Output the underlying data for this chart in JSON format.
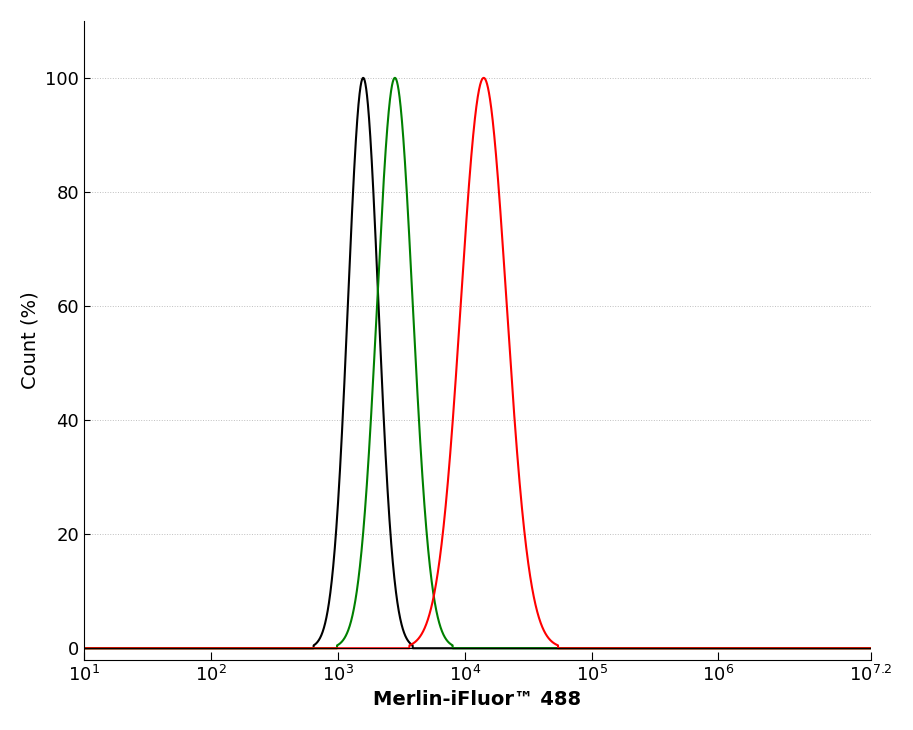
{
  "xlabel": "Merlin-iFluor™ 488",
  "ylabel": "Count (%)",
  "xlim_log": [
    1,
    7.2
  ],
  "ylim": [
    -2,
    110
  ],
  "yticks": [
    0,
    20,
    40,
    60,
    80,
    100
  ],
  "xtick_positions": [
    1,
    2,
    3,
    4,
    5,
    6,
    7.2
  ],
  "xtick_labels": [
    "10¹",
    "10²",
    "10³",
    "10⁴",
    "10⁵",
    "10⁶",
    "10⁷⋅²"
  ],
  "black_peak_log": 3.2,
  "black_sigma_log": 0.12,
  "green_peak_log": 3.45,
  "green_sigma_log": 0.14,
  "red_peak_log": 4.15,
  "red_sigma_log": 0.18,
  "line_colors": [
    "black",
    "green",
    "red"
  ],
  "line_width": 1.5,
  "background_color": "#ffffff",
  "xlabel_fontsize": 14,
  "ylabel_fontsize": 14,
  "tick_fontsize": 13
}
